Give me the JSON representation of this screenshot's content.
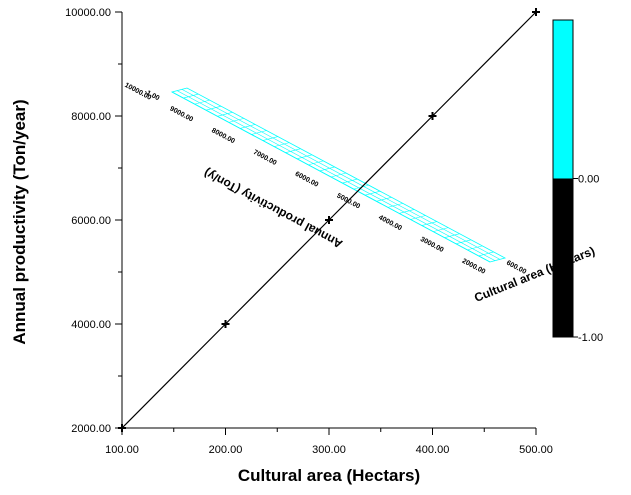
{
  "chart_data": [
    {
      "type": "line",
      "xlabel": "Cultural area (Hectars)",
      "ylabel": "Annual productivity (Ton/year)",
      "xlim": [
        100,
        500
      ],
      "ylim": [
        2000,
        10000
      ],
      "x_ticks": [
        {
          "label": "100.00"
        },
        {
          "label": "200.00"
        },
        {
          "label": "300.00"
        },
        {
          "label": "400.00"
        },
        {
          "label": "500.00"
        }
      ],
      "y_ticks": [
        {
          "label": "2000.00"
        },
        {
          "label": "4000.00"
        },
        {
          "label": "6000.00"
        },
        {
          "label": "8000.00"
        },
        {
          "label": "10000.00"
        }
      ],
      "series": [
        {
          "x": [
            100,
            200,
            300,
            400,
            500
          ],
          "y": [
            2000,
            4000,
            6000,
            8000,
            10000
          ]
        }
      ],
      "marker": "plus",
      "grid": false
    },
    {
      "type": "surface",
      "xlabel": "Cultural area (Hectars)",
      "ylabel": "Annual productivity (Ton/y)",
      "z_label": "-1.00",
      "y_tick_labels": [
        "10000.00",
        "9000.00",
        "8000.00",
        "7000.00",
        "6000.00",
        "5000.00",
        "4000.00",
        "3000.00",
        "2000.00"
      ],
      "x_tick_label": "600.00",
      "surface_color": "#00FFFF"
    }
  ],
  "colorbar": {
    "labels": [
      "0.00",
      "-1.00"
    ],
    "colors": [
      "#00FFFF",
      "#000000"
    ],
    "range": [
      -1,
      1
    ],
    "boundary": 0
  }
}
